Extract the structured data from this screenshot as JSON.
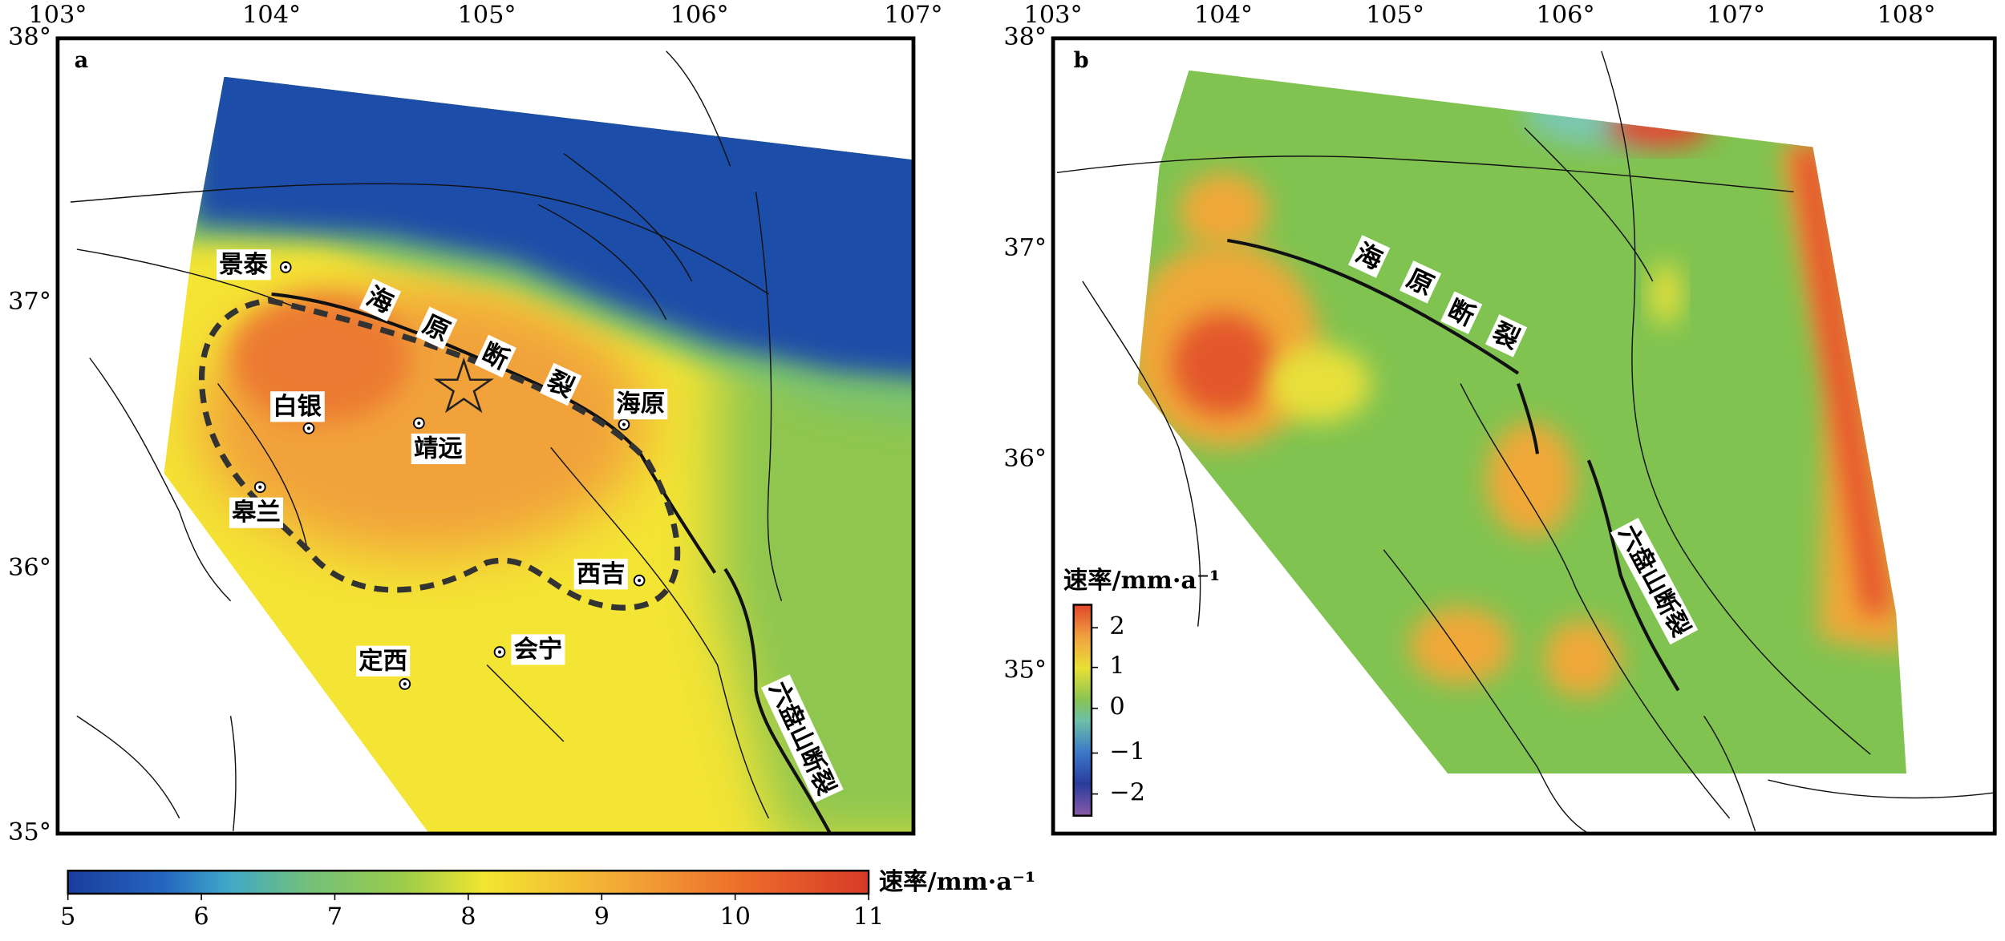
{
  "panels": [
    {
      "label": "a",
      "x_ticks": [
        "103°",
        "104°",
        "105°",
        "106°",
        "107°"
      ],
      "y_ticks": [
        "38°",
        "37°",
        "36°",
        "35°"
      ],
      "places": [
        "景泰",
        "白银",
        "靖远",
        "皋兰",
        "海原",
        "西吉",
        "会宁",
        "定西"
      ],
      "haiyuan_fault": [
        "海",
        "原",
        "断",
        "裂"
      ],
      "liupanshan_fault": "六盘山断裂",
      "colorbar": {
        "label": "速率/mm·a⁻¹",
        "ticks": [
          "5",
          "6",
          "7",
          "8",
          "9",
          "10",
          "11"
        ]
      }
    },
    {
      "label": "b",
      "x_ticks": [
        "103°",
        "104°",
        "105°",
        "106°",
        "107°",
        "108°"
      ],
      "y_ticks": [
        "38°",
        "37°",
        "36°",
        "35°"
      ],
      "haiyuan_fault": [
        "海",
        "原",
        "断",
        "裂"
      ],
      "liupanshan_fault": "六盘山断裂",
      "colorbar": {
        "label": "速率/mm·a⁻¹",
        "ticks": [
          "2",
          "1",
          "0",
          "−1",
          "−2"
        ]
      }
    }
  ]
}
